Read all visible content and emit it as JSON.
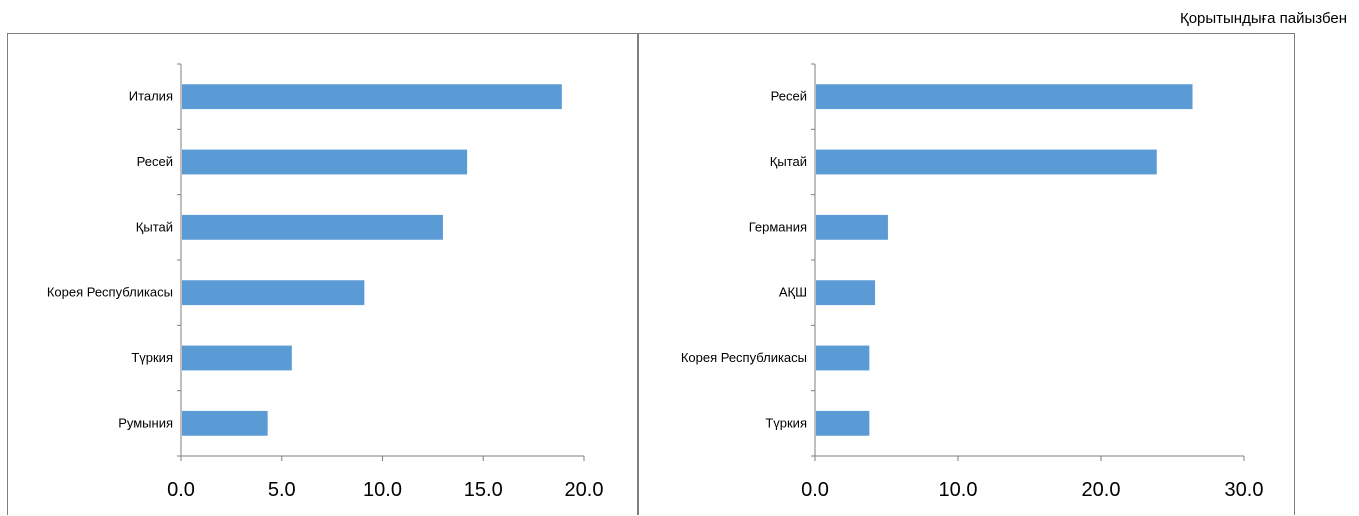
{
  "unit_note": "Қорытындыға пайызбен",
  "colors": {
    "bar": "#5b9bd5",
    "axis": "#7f7f7f"
  },
  "chart_data": [
    {
      "type": "bar",
      "orientation": "horizontal",
      "categories": [
        "Италия",
        "Ресей",
        "Қытай",
        "Корея Республикасы",
        "Түркия",
        "Румыния"
      ],
      "values": [
        18.9,
        14.2,
        13.0,
        9.1,
        5.5,
        4.3
      ],
      "xlim": [
        0,
        20
      ],
      "ticks": [
        "0.0",
        "5.0",
        "10.0",
        "15.0",
        "20.0"
      ],
      "grid": false
    },
    {
      "type": "bar",
      "orientation": "horizontal",
      "categories": [
        "Ресей",
        "Қытай",
        "Германия",
        "АҚШ",
        "Корея Республикасы",
        "Түркия"
      ],
      "values": [
        26.4,
        23.9,
        5.1,
        4.2,
        3.8,
        3.8
      ],
      "xlim": [
        0,
        30
      ],
      "ticks": [
        "0.0",
        "10.0",
        "20.0",
        "30.0"
      ],
      "grid": false
    }
  ]
}
